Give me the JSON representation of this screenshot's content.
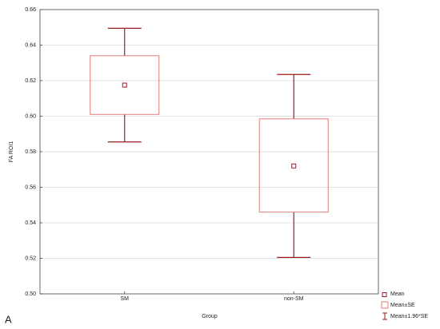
{
  "chart_data": {
    "type": "box",
    "x_label": "Group",
    "y_label": "FA ROI1",
    "panel_label": "A",
    "categories": [
      "SM",
      "non-SM"
    ],
    "series": [
      {
        "name": "Mean",
        "color": "#9b1c1c",
        "values": [
          0.6175,
          0.572
        ]
      },
      {
        "name": "Mean±SE",
        "color": "#e07a7a",
        "low": [
          0.601,
          0.546
        ],
        "high": [
          0.634,
          0.5985
        ]
      },
      {
        "name": "Mean±1.96*SE",
        "color": "#9b1c1c",
        "low": [
          0.5855,
          0.5205
        ],
        "high": [
          0.6495,
          0.6235
        ]
      }
    ],
    "ylim": [
      0.5,
      0.66
    ],
    "yticks": [
      {
        "value": 0.5,
        "label": "0.50"
      },
      0.52,
      0.54,
      0.56,
      0.58,
      {
        "value": 0.6,
        "label": "0.60"
      },
      0.62,
      0.64,
      0.66
    ],
    "grid": true,
    "legend": "bottom-right"
  }
}
